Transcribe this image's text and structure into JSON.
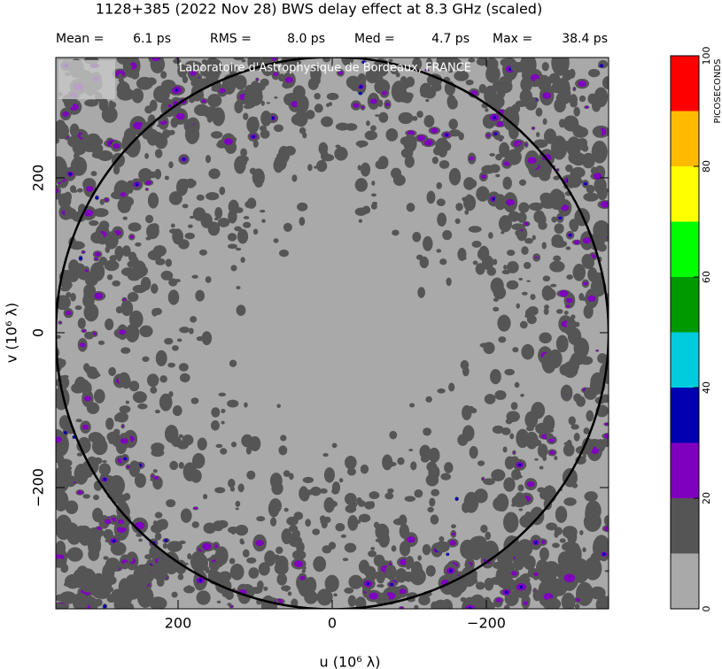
{
  "chart_data": {
    "type": "image",
    "title": "1128+385  (2022 Nov 28)   BWS delay effect at  8.3 GHz (scaled)",
    "stats": [
      {
        "label": "Mean =",
        "value": "6.1 ps"
      },
      {
        "label": "RMS =",
        "value": "8.0 ps"
      },
      {
        "label": "Med =",
        "value": "4.7 ps"
      },
      {
        "label": "Max =",
        "value": "38.4 ps"
      }
    ],
    "watermark": "Laboratoire d'Astrophysique de Bordeaux, FRANCE",
    "x_label": "u  (10⁶ λ)",
    "y_label": "v  (10⁶ λ)",
    "xlim": [
      358.6,
      -358.6
    ],
    "ylim": [
      -356.6,
      355.4
    ],
    "xticks": [
      200,
      0,
      {
        "value": -200,
        "label": "−200"
      }
    ],
    "yticks": [
      {
        "value": -200,
        "label": "−200"
      },
      0,
      200
    ],
    "colorbar": {
      "label": "PICOSECONDS",
      "lim": [
        0,
        100
      ],
      "ticks": [
        0,
        20,
        40,
        60,
        80,
        100
      ],
      "levels": [
        0,
        10,
        20,
        30,
        40,
        50,
        60,
        70,
        80,
        90,
        100
      ],
      "colors": [
        "#a9a9a9",
        "#555555",
        "#8000c0",
        "#0000b0",
        "#00ccdd",
        "#009900",
        "#00ff00",
        "#ffff00",
        "#ffbb00",
        "#ff0000"
      ]
    }
  }
}
